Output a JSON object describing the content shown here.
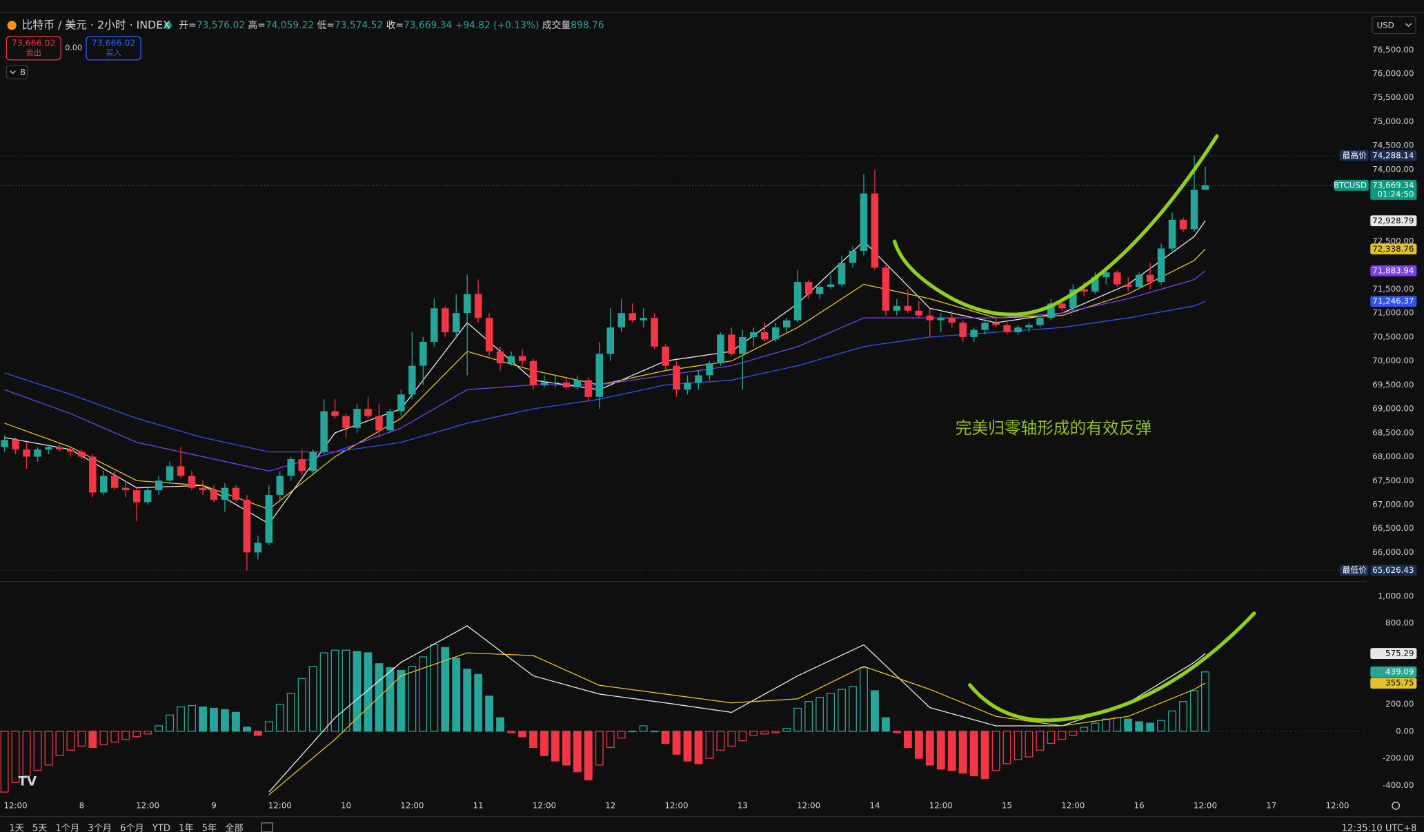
{
  "header": {
    "symbol": "比特币 / 美元 · 2小时 · INDEX",
    "ohlc": [
      {
        "label": "开=",
        "value": "73,576.02"
      },
      {
        "label": "高=",
        "value": "74,059.22"
      },
      {
        "label": "低=",
        "value": "73,574.52"
      },
      {
        "label": "收=",
        "value": "73,669.34"
      }
    ],
    "change": "+94.82 (+0.13%)",
    "volume_label": "成交量",
    "volume": "898.76",
    "sell": {
      "price": "73,666.02",
      "label": "卖出"
    },
    "spread": "0.00",
    "buy": {
      "price": "73,666.02",
      "label": "买入"
    },
    "indicators": "8",
    "currency": "USD"
  },
  "chart_data": {
    "type": "candlestick",
    "up_color": "#26a69a",
    "down_color": "#f23645",
    "grid": false,
    "xlim": [
      -0.41,
      123.66
    ],
    "xticks": [
      {
        "value": 1,
        "label": "12:00"
      },
      {
        "value": 7,
        "label": "8"
      },
      {
        "value": 13,
        "label": "12:00"
      },
      {
        "value": 19,
        "label": "9"
      },
      {
        "value": 25,
        "label": "12:00"
      },
      {
        "value": 31,
        "label": "10"
      },
      {
        "value": 37,
        "label": "12:00"
      },
      {
        "value": 43,
        "label": "11"
      },
      {
        "value": 49,
        "label": "12:00"
      },
      {
        "value": 55,
        "label": "12"
      },
      {
        "value": 61,
        "label": "12:00"
      },
      {
        "value": 67,
        "label": "13"
      },
      {
        "value": 73,
        "label": "12:00"
      },
      {
        "value": 79,
        "label": "14"
      },
      {
        "value": 85,
        "label": "12:00"
      },
      {
        "value": 91,
        "label": "15"
      },
      {
        "value": 97,
        "label": "12:00"
      },
      {
        "value": 103,
        "label": "16"
      },
      {
        "value": 109,
        "label": "12:00"
      },
      {
        "value": 115,
        "label": "17"
      },
      {
        "value": 121,
        "label": "12:00"
      }
    ],
    "ylim": [
      65410,
      77200
    ],
    "yticks": [
      {
        "value": 76500,
        "label": "76,500.00"
      },
      {
        "value": 76000,
        "label": "76,000.00"
      },
      {
        "value": 75500,
        "label": "75,500.00"
      },
      {
        "value": 75000,
        "label": "75,000.00"
      },
      {
        "value": 74500,
        "label": "74,500.00"
      },
      {
        "value": 74000,
        "label": "74,000.00"
      },
      {
        "value": 72500,
        "label": "72,500.00"
      },
      {
        "value": 71500,
        "label": "71,500.00"
      },
      {
        "value": 71000,
        "label": "71,000.00"
      },
      {
        "value": 70500,
        "label": "70,500.00"
      },
      {
        "value": 70000,
        "label": "70,000.00"
      },
      {
        "value": 69500,
        "label": "69,500.00"
      },
      {
        "value": 69000,
        "label": "69,000.00"
      },
      {
        "value": 68500,
        "label": "68,500.00"
      },
      {
        "value": 68000,
        "label": "68,000.00"
      },
      {
        "value": 67500,
        "label": "67,500.00"
      },
      {
        "value": 67000,
        "label": "67,000.00"
      },
      {
        "value": 66500,
        "label": "66,500.00"
      },
      {
        "value": 66000,
        "label": "66,000.00"
      }
    ],
    "candles": [
      [
        68200,
        68450,
        68100,
        68350
      ],
      [
        68350,
        68400,
        68050,
        68150
      ],
      [
        68150,
        68300,
        67750,
        68000
      ],
      [
        68000,
        68200,
        67900,
        68150
      ],
      [
        68150,
        68250,
        68050,
        68200
      ],
      [
        68200,
        68250,
        68100,
        68150
      ],
      [
        68150,
        68200,
        68000,
        68100
      ],
      [
        68100,
        68150,
        67950,
        68000
      ],
      [
        68000,
        68050,
        67150,
        67250
      ],
      [
        67250,
        67700,
        67200,
        67600
      ],
      [
        67600,
        67700,
        67300,
        67350
      ],
      [
        67350,
        67500,
        67150,
        67300
      ],
      [
        67300,
        67350,
        66650,
        67050
      ],
      [
        67050,
        67350,
        67000,
        67300
      ],
      [
        67300,
        67600,
        67200,
        67500
      ],
      [
        67500,
        67900,
        67450,
        67800
      ],
      [
        67800,
        68200,
        67550,
        67600
      ],
      [
        67600,
        67700,
        67300,
        67350
      ],
      [
        67350,
        67500,
        67200,
        67300
      ],
      [
        67300,
        67400,
        67050,
        67100
      ],
      [
        67100,
        67450,
        66850,
        67350
      ],
      [
        67350,
        67400,
        67050,
        67100
      ],
      [
        67100,
        67200,
        65626.43,
        66000
      ],
      [
        66000,
        66350,
        65850,
        66200
      ],
      [
        66200,
        67400,
        66150,
        67200
      ],
      [
        67200,
        67700,
        67100,
        67600
      ],
      [
        67600,
        68000,
        67500,
        67950
      ],
      [
        67950,
        68150,
        67600,
        67700
      ],
      [
        67700,
        68150,
        67650,
        68100
      ],
      [
        68100,
        69200,
        68050,
        68950
      ],
      [
        68950,
        69200,
        68800,
        68850
      ],
      [
        68850,
        68900,
        68400,
        68600
      ],
      [
        68600,
        69100,
        68500,
        69000
      ],
      [
        69000,
        69250,
        68800,
        68850
      ],
      [
        68850,
        69100,
        68400,
        68550
      ],
      [
        68550,
        69000,
        68500,
        68950
      ],
      [
        68950,
        69400,
        68850,
        69300
      ],
      [
        69300,
        70600,
        69200,
        69900
      ],
      [
        69900,
        70500,
        69500,
        70400
      ],
      [
        70400,
        71300,
        70300,
        71100
      ],
      [
        71100,
        71150,
        70500,
        70600
      ],
      [
        70600,
        71400,
        70500,
        71000
      ],
      [
        71000,
        71800,
        69700,
        71400
      ],
      [
        71400,
        71700,
        70800,
        70900
      ],
      [
        70900,
        71000,
        70100,
        70200
      ],
      [
        70200,
        70300,
        69800,
        69950
      ],
      [
        69950,
        70200,
        69900,
        70100
      ],
      [
        70100,
        70250,
        69900,
        70000
      ],
      [
        70000,
        70050,
        69400,
        69500
      ],
      [
        69500,
        69700,
        69450,
        69550
      ],
      [
        69550,
        69700,
        69450,
        69550
      ],
      [
        69550,
        69650,
        69400,
        69450
      ],
      [
        69450,
        69700,
        69400,
        69600
      ],
      [
        69600,
        69650,
        69150,
        69250
      ],
      [
        69250,
        70400,
        69000,
        70150
      ],
      [
        70150,
        71100,
        70000,
        70700
      ],
      [
        70700,
        71300,
        70600,
        71000
      ],
      [
        71000,
        71200,
        70800,
        70850
      ],
      [
        70850,
        71100,
        70700,
        70900
      ],
      [
        70900,
        71000,
        70250,
        70300
      ],
      [
        70300,
        70350,
        69800,
        69900
      ],
      [
        69900,
        70000,
        69250,
        69400
      ],
      [
        69400,
        69700,
        69300,
        69550
      ],
      [
        69550,
        69800,
        69400,
        69700
      ],
      [
        69700,
        70000,
        69600,
        69950
      ],
      [
        69950,
        70600,
        69900,
        70550
      ],
      [
        70550,
        70700,
        70100,
        70150
      ],
      [
        70150,
        70650,
        69400,
        70500
      ],
      [
        70500,
        70700,
        70300,
        70600
      ],
      [
        70600,
        70800,
        70400,
        70450
      ],
      [
        70450,
        70800,
        70400,
        70700
      ],
      [
        70700,
        70900,
        70600,
        70850
      ],
      [
        70850,
        71900,
        70800,
        71650
      ],
      [
        71650,
        71700,
        71300,
        71400
      ],
      [
        71400,
        71600,
        71300,
        71550
      ],
      [
        71550,
        71800,
        71500,
        71600
      ],
      [
        71600,
        72200,
        71550,
        72050
      ],
      [
        72050,
        72400,
        71950,
        72300
      ],
      [
        72300,
        73900,
        72200,
        73500
      ],
      [
        73500,
        73990,
        71900,
        71950
      ],
      [
        71950,
        72000,
        70950,
        71050
      ],
      [
        71050,
        71300,
        70950,
        71150
      ],
      [
        71150,
        71500,
        71000,
        71050
      ],
      [
        71050,
        71250,
        70900,
        70950
      ],
      [
        70950,
        71100,
        70500,
        70850
      ],
      [
        70850,
        71000,
        70600,
        70900
      ],
      [
        70900,
        71050,
        70700,
        70800
      ],
      [
        70800,
        70850,
        70400,
        70500
      ],
      [
        70500,
        70700,
        70400,
        70650
      ],
      [
        70650,
        70900,
        70550,
        70800
      ],
      [
        70800,
        71000,
        70700,
        70750
      ],
      [
        70750,
        70800,
        70550,
        70600
      ],
      [
        70600,
        70750,
        70550,
        70700
      ],
      [
        70700,
        70800,
        70600,
        70750
      ],
      [
        70750,
        70950,
        70700,
        70900
      ],
      [
        70900,
        71300,
        70850,
        71200
      ],
      [
        71200,
        71300,
        71050,
        71100
      ],
      [
        71100,
        71600,
        71050,
        71500
      ],
      [
        71500,
        71650,
        71350,
        71450
      ],
      [
        71450,
        71850,
        71400,
        71750
      ],
      [
        71750,
        71900,
        71600,
        71850
      ],
      [
        71850,
        71900,
        71550,
        71600
      ],
      [
        71600,
        71750,
        71450,
        71550
      ],
      [
        71550,
        71850,
        71500,
        71800
      ],
      [
        71800,
        72050,
        71500,
        71650
      ],
      [
        71650,
        72450,
        71600,
        72350
      ],
      [
        72350,
        73100,
        72300,
        72950
      ],
      [
        72950,
        73000,
        72700,
        72750
      ],
      [
        72750,
        74288.14,
        72700,
        73576.02
      ],
      [
        73576.02,
        74059.22,
        73574.52,
        73669.34
      ]
    ],
    "ma": [
      {
        "color": "#e8e8e8",
        "x": [
          0,
          6,
          12,
          18,
          24,
          30,
          36,
          42,
          48,
          54,
          60,
          66,
          72,
          78,
          84,
          90,
          96,
          102,
          108,
          109
        ],
        "values": [
          68400,
          68150,
          67350,
          67400,
          66600,
          68500,
          69000,
          70800,
          69600,
          69400,
          70000,
          70200,
          71200,
          72500,
          71100,
          70800,
          71000,
          71600,
          72600,
          72928.79
        ],
        "tag": "72,928.79",
        "tag_text_color": "#000000"
      },
      {
        "color": "#e6c229",
        "x": [
          0,
          6,
          12,
          18,
          24,
          30,
          36,
          42,
          48,
          54,
          60,
          66,
          72,
          78,
          84,
          90,
          96,
          102,
          108,
          109
        ],
        "values": [
          68700,
          68200,
          67500,
          67400,
          66900,
          68000,
          68800,
          70200,
          69800,
          69500,
          69800,
          70000,
          70700,
          71600,
          71300,
          70900,
          70950,
          71400,
          72100,
          72338.76
        ],
        "tag": "72,338.76",
        "tag_text_color": "#000000"
      },
      {
        "color": "#7b3ff2",
        "x": [
          0,
          6,
          12,
          18,
          24,
          30,
          36,
          42,
          48,
          54,
          60,
          66,
          72,
          78,
          84,
          90,
          96,
          102,
          108,
          109
        ],
        "values": [
          69400,
          68900,
          68300,
          68000,
          67700,
          68100,
          68600,
          69400,
          69500,
          69500,
          69700,
          69900,
          70300,
          70900,
          70900,
          70900,
          71000,
          71300,
          71700,
          71883.94
        ],
        "tag": "71,883.94",
        "tag_text_color": "#ffffff"
      },
      {
        "color": "#2f54eb",
        "x": [
          0,
          6,
          12,
          18,
          24,
          30,
          36,
          42,
          48,
          54,
          60,
          66,
          72,
          78,
          84,
          90,
          96,
          102,
          108,
          109
        ],
        "values": [
          69750,
          69300,
          68800,
          68400,
          68100,
          68100,
          68300,
          68700,
          69000,
          69200,
          69500,
          69600,
          69900,
          70300,
          70500,
          70600,
          70700,
          70900,
          71150,
          71246.37
        ],
        "tag": "71,246.37",
        "tag_text_color": "#ffffff"
      }
    ],
    "high_tag": {
      "label": "最高价",
      "value": 74288.14,
      "text": "74,288.14",
      "color": "#1c2d52"
    },
    "low_tag": {
      "label": "最低价",
      "value": 65626.43,
      "text": "65,626.43",
      "color": "#1c2d52"
    },
    "price_tag": {
      "name": "BTCUSD",
      "value": 73669.34,
      "text": "73,669.34",
      "countdown": "01:24:50",
      "color": "#089981"
    },
    "annotation": "完美归零轴形成的有效反弹",
    "macd": {
      "ylim": [
        -497,
        1094
      ],
      "yticks": [
        {
          "value": 1000,
          "label": "1,000.00"
        },
        {
          "value": 800,
          "label": "800.00"
        },
        {
          "value": 200,
          "label": "200.00"
        },
        {
          "value": 0,
          "label": "0.00"
        },
        {
          "value": -200,
          "label": "-200.00"
        },
        {
          "value": -400,
          "label": "-400.00"
        }
      ],
      "histogram": [
        -450,
        -380,
        -330,
        -290,
        -250,
        -180,
        -140,
        -110,
        -120,
        -100,
        -80,
        -60,
        -40,
        -20,
        40,
        120,
        180,
        190,
        180,
        170,
        160,
        140,
        30,
        -30,
        70,
        200,
        280,
        390,
        480,
        580,
        600,
        600,
        590,
        580,
        500,
        470,
        450,
        480,
        550,
        640,
        620,
        540,
        460,
        420,
        260,
        100,
        -10,
        -40,
        -120,
        -180,
        -220,
        -250,
        -300,
        -360,
        -250,
        -120,
        -50,
        0,
        40,
        0,
        -90,
        -170,
        -220,
        -240,
        -200,
        -140,
        -110,
        -70,
        -30,
        -20,
        -10,
        20,
        170,
        220,
        250,
        280,
        310,
        330,
        470,
        300,
        100,
        -10,
        -120,
        -200,
        -250,
        -280,
        -290,
        -310,
        -330,
        -350,
        -290,
        -240,
        -210,
        -190,
        -140,
        -90,
        -60,
        -30,
        30,
        60,
        90,
        100,
        90,
        70,
        60,
        80,
        150,
        220,
        300,
        439.09
      ],
      "hist_tag": "439.09",
      "macd_line": {
        "color": "#e8e8e8",
        "x": [
          0,
          6,
          12,
          18,
          24,
          30,
          36,
          42,
          48,
          54,
          60,
          66,
          72,
          78,
          84,
          90,
          96,
          102,
          108,
          109
        ],
        "values": [
          null,
          null,
          null,
          null,
          -450,
          100,
          510,
          780,
          410,
          275,
          210,
          140,
          410,
          640,
          175,
          40,
          40,
          210,
          510,
          575.29
        ],
        "tag": "575.29"
      },
      "signal": {
        "color": "#e6c229",
        "x": [
          0,
          6,
          12,
          18,
          24,
          30,
          36,
          42,
          48,
          54,
          60,
          66,
          72,
          78,
          84,
          90,
          96,
          102,
          108,
          109
        ],
        "values": [
          null,
          null,
          null,
          null,
          -470,
          -60,
          410,
          580,
          560,
          340,
          275,
          210,
          240,
          480,
          310,
          110,
          40,
          110,
          310,
          355.75
        ],
        "tag": "355.75"
      }
    }
  },
  "footer": {
    "ranges": [
      "1天",
      "5天",
      "1个月",
      "3个月",
      "6个月",
      "YTD",
      "1年",
      "5年",
      "全部"
    ],
    "clock": "12:35:10 UTC+8"
  }
}
